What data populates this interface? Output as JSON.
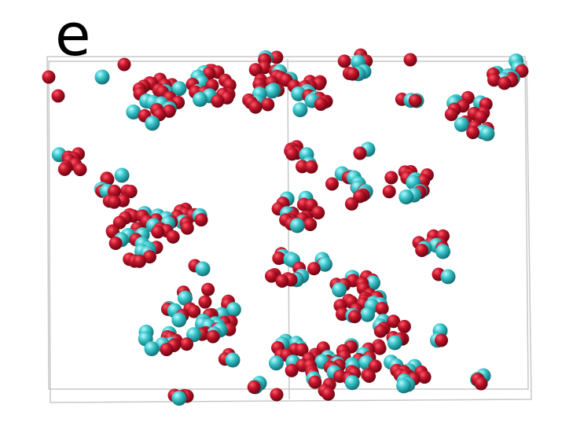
{
  "panel": {
    "label": "e"
  },
  "colors": {
    "atom_red": "#c0142a",
    "atom_red_dark": "#7a0a18",
    "atom_cyan": "#37c4c8",
    "atom_cyan_dark": "#1a8a90",
    "cell_edge": "#c8c8c8"
  },
  "legend": []
}
